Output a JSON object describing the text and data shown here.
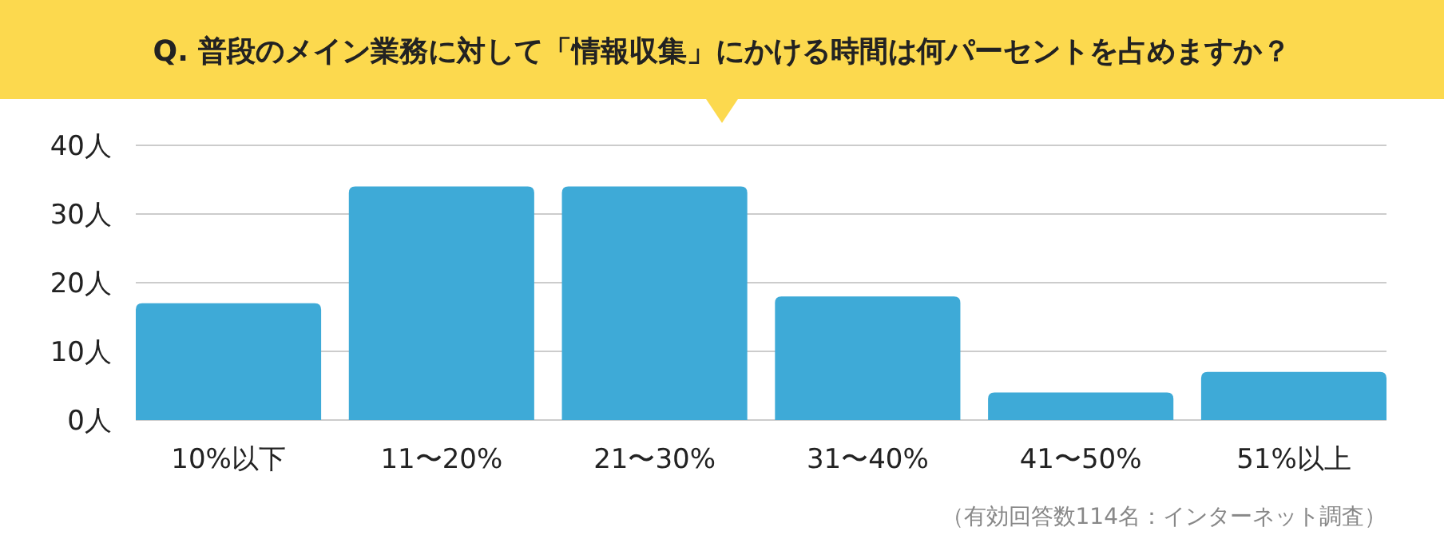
{
  "chart_data": {
    "type": "bar",
    "title": "Q. 普段のメイン業務に対して「情報収集」にかける時間は何パーセントを占めますか？",
    "categories": [
      "10%以下",
      "11〜20%",
      "21〜30%",
      "31〜40%",
      "41〜50%",
      "51%以上"
    ],
    "values": [
      17,
      34,
      34,
      18,
      4,
      7
    ],
    "color": "#3eaad7",
    "ylim": [
      0,
      40
    ],
    "yticks": [
      {
        "value": 0,
        "label": "0人"
      },
      {
        "value": 10,
        "label": "10人"
      },
      {
        "value": 20,
        "label": "20人"
      },
      {
        "value": 30,
        "label": "30人"
      },
      {
        "value": 40,
        "label": "40人"
      }
    ],
    "grid": "y",
    "annotations": [
      "（有効回答数114名：インターネット調査）"
    ]
  }
}
